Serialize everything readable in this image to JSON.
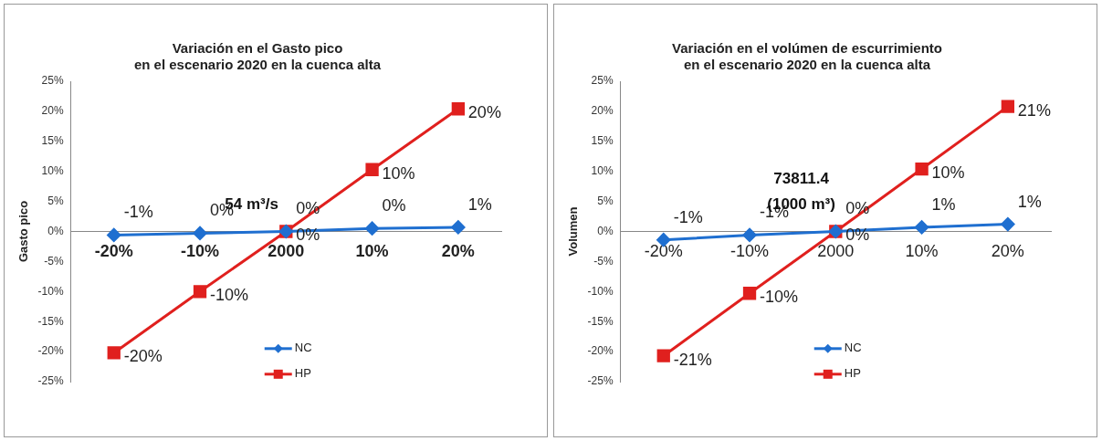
{
  "chart_data": [
    {
      "type": "line",
      "title": "Variación en el Gasto pico\nen el escenario 2020 en la cuenca alta",
      "ylabel": "Gasto pico",
      "categories": [
        "-20%",
        "-10%",
        "2000",
        "10%",
        "20%"
      ],
      "series": [
        {
          "name": "NC",
          "color": "#1f6fd0",
          "marker": "diamond",
          "values": [
            -0.6,
            -0.3,
            0,
            0.5,
            0.7
          ],
          "value_labels": [
            "-1%",
            "0%",
            "0%",
            "0%",
            "1%"
          ]
        },
        {
          "name": "HP",
          "color": "#e0201e",
          "marker": "square",
          "values": [
            -20.2,
            -10,
            0,
            10.3,
            20.4
          ],
          "value_labels": [
            "-20%",
            "-10%",
            "0%",
            "10%",
            "20%"
          ]
        }
      ],
      "ylim": [
        -25,
        25
      ],
      "yticks": [
        {
          "value": -25,
          "label": "-25%"
        },
        {
          "value": -20,
          "label": "-20%"
        },
        {
          "value": -15,
          "label": "-15%"
        },
        {
          "value": -10,
          "label": "-10%"
        },
        {
          "value": -5,
          "label": "-5%"
        },
        {
          "value": 0,
          "label": "0%"
        },
        {
          "value": 5,
          "label": "5%"
        },
        {
          "value": 10,
          "label": "10%"
        },
        {
          "value": 15,
          "label": "15%"
        },
        {
          "value": 20,
          "label": "20%"
        },
        {
          "value": 25,
          "label": "25%"
        }
      ],
      "annotations": [
        "54 m³/s"
      ],
      "legend": "bottom",
      "grid": false
    },
    {
      "type": "line",
      "title": "Variación en el volúmen de escurrimiento\nen el escenario 2020 en la cuenca alta",
      "ylabel": "Volumen",
      "categories": [
        "-20%",
        "-10%",
        "2000",
        "10%",
        "20%"
      ],
      "series": [
        {
          "name": "NC",
          "color": "#1f6fd0",
          "marker": "diamond",
          "values": [
            -1.4,
            -0.6,
            0,
            0.7,
            1.2
          ],
          "value_labels": [
            "-1%",
            "-1%",
            "0%",
            "1%",
            "1%"
          ]
        },
        {
          "name": "HP",
          "color": "#e0201e",
          "marker": "square",
          "values": [
            -20.7,
            -10.3,
            0,
            10.4,
            20.8
          ],
          "value_labels": [
            "-21%",
            "-10%",
            "0%",
            "10%",
            "21%"
          ]
        }
      ],
      "ylim": [
        -25,
        25
      ],
      "yticks": [
        {
          "value": -25,
          "label": "-25%"
        },
        {
          "value": -20,
          "label": "-20%"
        },
        {
          "value": -15,
          "label": "-15%"
        },
        {
          "value": -10,
          "label": "-10%"
        },
        {
          "value": -5,
          "label": "-5%"
        },
        {
          "value": 0,
          "label": "0%"
        },
        {
          "value": 5,
          "label": "5%"
        },
        {
          "value": 10,
          "label": "10%"
        },
        {
          "value": 15,
          "label": "15%"
        },
        {
          "value": 20,
          "label": "20%"
        },
        {
          "value": 25,
          "label": "25%"
        }
      ],
      "annotations": [
        "73811.4",
        "(1000 m³)"
      ],
      "legend": "bottom",
      "grid": false
    }
  ]
}
